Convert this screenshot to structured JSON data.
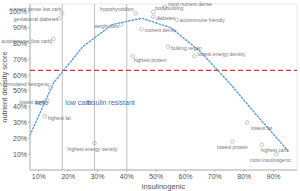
{
  "chart_data": {
    "type": "scatter",
    "x_label": "insulinogenic",
    "y_label": "nutrient density score",
    "xlim": [
      7,
      98
    ],
    "ylim": [
      0,
      105
    ],
    "xticks": [
      {
        "value": 10,
        "label": "10%"
      },
      {
        "value": 20,
        "label": "20%"
      },
      {
        "value": 30,
        "label": "30%"
      },
      {
        "value": 40,
        "label": "40%"
      },
      {
        "value": 50,
        "label": "50%"
      },
      {
        "value": 60,
        "label": "60%"
      },
      {
        "value": 70,
        "label": "70%"
      },
      {
        "value": 80,
        "label": "80%"
      },
      {
        "value": 90,
        "label": "90%"
      }
    ],
    "yticks": [
      {
        "value": 10,
        "label": "10%"
      },
      {
        "value": 20,
        "label": "20%"
      },
      {
        "value": 30,
        "label": "30%"
      },
      {
        "value": 40,
        "label": "40%"
      },
      {
        "value": 50,
        "label": "50%"
      },
      {
        "value": 60,
        "label": "60%"
      },
      {
        "value": 70,
        "label": "70%"
      },
      {
        "value": 80,
        "label": "80%"
      },
      {
        "value": 90,
        "label": "90%"
      },
      {
        "value": 100,
        "label": "100%"
      }
    ],
    "grid": false,
    "color": "#b5b5b5",
    "marker": "circle",
    "labels": [
      "hypothyroidism",
      "bodybuilding",
      "most nutrient dense",
      "nutrient dense low carb",
      "gestational diabetes",
      "diabetes",
      "autoimmune friendly",
      "weight loss",
      "nutrient dense",
      "autoimmune (low carb)",
      "bulking vegan",
      "lowest energy density",
      "highest protein",
      "Fresh formulated ketogenic",
      "lowest carb",
      "lowest fat",
      "highest fat",
      "highest energy density",
      "lowest protein",
      "highest carb",
      "most insulinogenic"
    ],
    "x": [
      43,
      49,
      53,
      18,
      17,
      49,
      57,
      38,
      45,
      15,
      54,
      63,
      42,
      14,
      13,
      81,
      12,
      29,
      76,
      86,
      91
    ],
    "values": [
      99,
      100,
      103,
      99,
      96,
      97,
      95,
      92,
      89,
      83,
      78,
      72,
      72,
      52,
      44,
      30,
      34,
      17,
      18,
      16,
      10
    ],
    "trend": {
      "type": "line",
      "color": "#5aa0d8",
      "line_style": "dotted",
      "x": [
        7,
        15,
        25,
        35,
        45,
        55,
        65,
        75,
        85,
        95
      ],
      "values": [
        22,
        55,
        78,
        92,
        96,
        90,
        75,
        55,
        33,
        12
      ]
    },
    "threshold": {
      "value": 63,
      "color": "#e03030",
      "line_style": "dashed"
    },
    "vlines": [
      18,
      29,
      40
    ],
    "annotations": [
      {
        "text": "keto",
        "x": 11,
        "y": 41
      },
      {
        "text": "low carb",
        "x": 23.5,
        "y": 41
      },
      {
        "text": "insulin resistant",
        "x": 34.5,
        "y": 41
      }
    ]
  }
}
